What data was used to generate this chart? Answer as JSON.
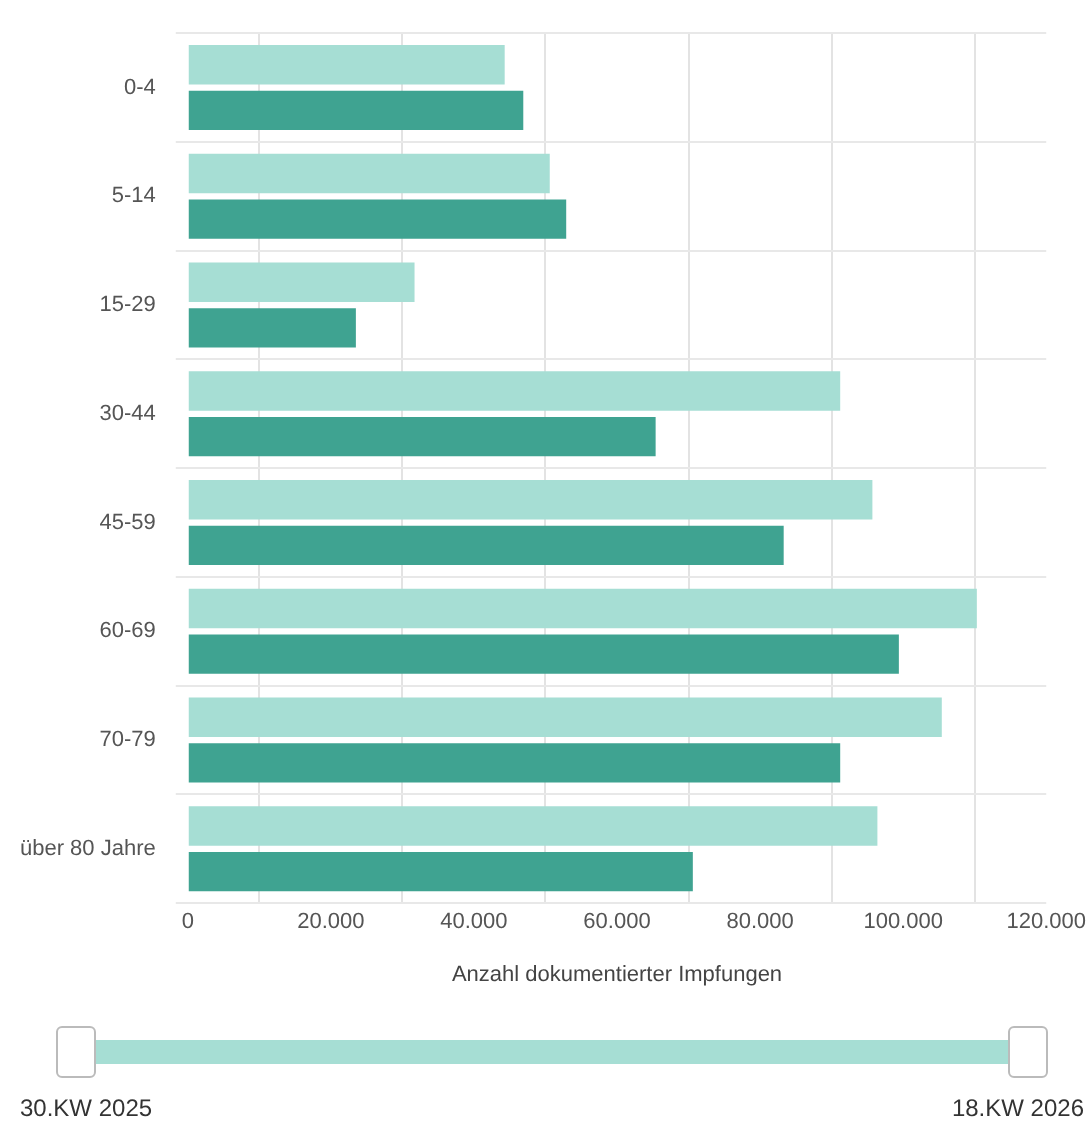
{
  "chart_data": {
    "type": "bar",
    "orientation": "horizontal",
    "xlabel": "Anzahl dokumentierter Impfungen",
    "categories": [
      "0-4",
      "5-14",
      "15-29",
      "30-44",
      "45-59",
      "60-69",
      "70-79",
      "über 80 Jahre"
    ],
    "series": [
      {
        "color": "#a6ded4",
        "values": [
          44300,
          50600,
          31700,
          91200,
          95700,
          110300,
          105400,
          96400
        ]
      },
      {
        "color": "#3fa391",
        "values": [
          46900,
          52900,
          23500,
          65400,
          83300,
          99400,
          91200,
          70600
        ]
      }
    ],
    "xlim": [
      0,
      120000
    ],
    "xticks": [
      0,
      {
        "value": 10000,
        "label": null
      },
      {
        "value": 20000,
        "label": "20.000"
      },
      {
        "value": 30000,
        "label": null
      },
      {
        "value": 40000,
        "label": "40.000"
      },
      {
        "value": 50000,
        "label": null
      },
      {
        "value": 60000,
        "label": "60.000"
      },
      {
        "value": 70000,
        "label": null
      },
      {
        "value": 80000,
        "label": "80.000"
      },
      {
        "value": 90000,
        "label": null
      },
      {
        "value": 100000,
        "label": "100.000"
      },
      {
        "value": 110000,
        "label": null
      },
      {
        "value": 120000,
        "label": "120.000"
      }
    ],
    "grid": true,
    "legend": false,
    "annotations": [
      "30.KW 2025",
      "18.KW 2026"
    ]
  }
}
